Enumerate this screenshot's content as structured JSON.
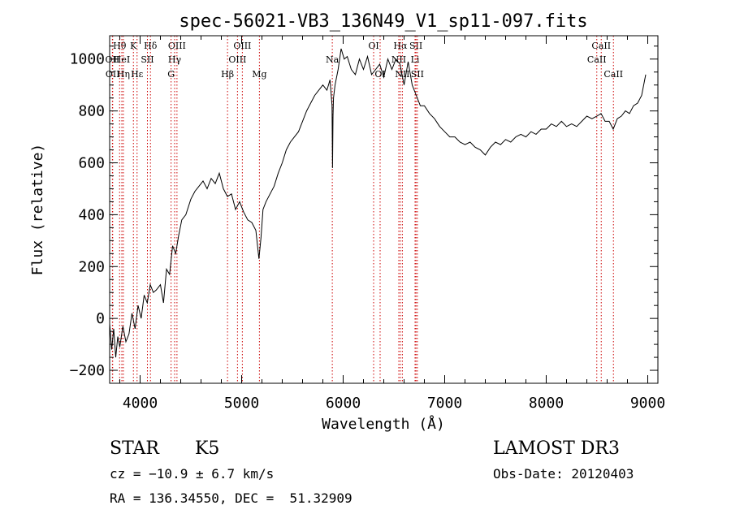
{
  "chart_data": {
    "type": "line",
    "title": "spec-56021-VB3_136N49_V1_sp11-097.fits",
    "xlabel": "Wavelength (Å)",
    "ylabel": "Flux (relative)",
    "xlim": [
      3700,
      9100
    ],
    "ylim": [
      -250,
      1090
    ],
    "xticks": [
      4000,
      5000,
      6000,
      7000,
      8000,
      9000
    ],
    "yticks": [
      -200,
      0,
      200,
      400,
      600,
      800,
      1000
    ],
    "grid": false,
    "series": [
      {
        "name": "flux",
        "x": [
          3700,
          3720,
          3740,
          3760,
          3780,
          3800,
          3830,
          3860,
          3890,
          3920,
          3950,
          3980,
          4010,
          4040,
          4070,
          4100,
          4130,
          4160,
          4200,
          4230,
          4260,
          4290,
          4320,
          4350,
          4380,
          4410,
          4450,
          4500,
          4540,
          4580,
          4620,
          4660,
          4700,
          4740,
          4780,
          4820,
          4860,
          4900,
          4940,
          4980,
          5020,
          5060,
          5100,
          5140,
          5170,
          5190,
          5210,
          5240,
          5280,
          5320,
          5360,
          5400,
          5440,
          5480,
          5520,
          5560,
          5600,
          5640,
          5680,
          5720,
          5760,
          5800,
          5840,
          5870,
          5890,
          5895,
          5900,
          5905,
          5920,
          5950,
          5980,
          6010,
          6040,
          6080,
          6120,
          6160,
          6200,
          6240,
          6280,
          6320,
          6360,
          6400,
          6440,
          6480,
          6520,
          6560,
          6600,
          6640,
          6680,
          6720,
          6760,
          6800,
          6850,
          6900,
          6950,
          7000,
          7050,
          7100,
          7150,
          7200,
          7250,
          7300,
          7350,
          7400,
          7450,
          7500,
          7550,
          7600,
          7650,
          7700,
          7750,
          7800,
          7850,
          7900,
          7950,
          8000,
          8050,
          8100,
          8150,
          8200,
          8250,
          8300,
          8350,
          8400,
          8450,
          8500,
          8540,
          8580,
          8620,
          8660,
          8700,
          8740,
          8780,
          8820,
          8860,
          8900,
          8940,
          8980
        ],
        "values": [
          -20,
          -120,
          -40,
          -150,
          -70,
          -110,
          -30,
          -90,
          -60,
          20,
          -40,
          50,
          0,
          90,
          60,
          130,
          100,
          110,
          130,
          60,
          190,
          170,
          280,
          250,
          320,
          380,
          400,
          460,
          490,
          510,
          530,
          500,
          540,
          520,
          560,
          500,
          470,
          480,
          420,
          450,
          410,
          380,
          370,
          340,
          230,
          310,
          420,
          450,
          480,
          510,
          560,
          600,
          650,
          680,
          700,
          720,
          760,
          800,
          830,
          860,
          880,
          900,
          880,
          920,
          820,
          580,
          780,
          850,
          900,
          960,
          1040,
          1000,
          1010,
          960,
          940,
          1000,
          960,
          1010,
          940,
          960,
          980,
          930,
          1000,
          960,
          1000,
          980,
          900,
          990,
          900,
          860,
          820,
          820,
          790,
          770,
          740,
          720,
          700,
          700,
          680,
          670,
          680,
          660,
          650,
          630,
          660,
          680,
          670,
          690,
          680,
          700,
          710,
          700,
          720,
          710,
          730,
          730,
          750,
          740,
          760,
          740,
          750,
          740,
          760,
          780,
          770,
          780,
          790,
          760,
          760,
          730,
          770,
          780,
          800,
          790,
          820,
          830,
          860,
          940
        ]
      }
    ],
    "line_marks": [
      {
        "label": "Hθ",
        "wavelength": 3798,
        "row": 1
      },
      {
        "label": "OII",
        "wavelength": 3727,
        "row": 2
      },
      {
        "label": "OII",
        "wavelength": 3730,
        "row": 3
      },
      {
        "label": "HeI",
        "wavelength": 3820,
        "row": 2
      },
      {
        "label": "Hη",
        "wavelength": 3835,
        "row": 3
      },
      {
        "label": "K",
        "wavelength": 3934,
        "row": 1
      },
      {
        "label": "Hε",
        "wavelength": 3970,
        "row": 3
      },
      {
        "label": "SII",
        "wavelength": 4072,
        "row": 2
      },
      {
        "label": "Hδ",
        "wavelength": 4102,
        "row": 1
      },
      {
        "label": "OIII",
        "wavelength": 4363,
        "row": 1
      },
      {
        "label": "Hγ",
        "wavelength": 4340,
        "row": 2
      },
      {
        "label": "G",
        "wavelength": 4305,
        "row": 3
      },
      {
        "label": "Hβ",
        "wavelength": 4861,
        "row": 3
      },
      {
        "label": "OIII",
        "wavelength": 4959,
        "row": 2
      },
      {
        "label": "OIII",
        "wavelength": 5007,
        "row": 1
      },
      {
        "label": "Mg",
        "wavelength": 5175,
        "row": 3
      },
      {
        "label": "Na",
        "wavelength": 5893,
        "row": 2
      },
      {
        "label": "OI",
        "wavelength": 6300,
        "row": 1
      },
      {
        "label": "OI",
        "wavelength": 6364,
        "row": 3
      },
      {
        "label": "Hα",
        "wavelength": 6563,
        "row": 1
      },
      {
        "label": "NII",
        "wavelength": 6548,
        "row": 2
      },
      {
        "label": "NII",
        "wavelength": 6583,
        "row": 3
      },
      {
        "label": "SII",
        "wavelength": 6717,
        "row": 1
      },
      {
        "label": "Li",
        "wavelength": 6708,
        "row": 2
      },
      {
        "label": "SII",
        "wavelength": 6731,
        "row": 3
      },
      {
        "label": "CaII",
        "wavelength": 8542,
        "row": 1
      },
      {
        "label": "CaII",
        "wavelength": 8498,
        "row": 2
      },
      {
        "label": "CaII",
        "wavelength": 8662,
        "row": 3
      }
    ],
    "colors": {
      "line": "#000000",
      "marker": "#cc0000",
      "axis": "#000000"
    }
  },
  "info": {
    "class_label": "STAR",
    "subclass": "K5",
    "survey": "LAMOST DR3",
    "cz": "cz = −10.9 ± 6.7 km/s",
    "obs_date": "Obs-Date: 20120403",
    "coords": "RA = 136.34550, DEC =  51.32909"
  }
}
